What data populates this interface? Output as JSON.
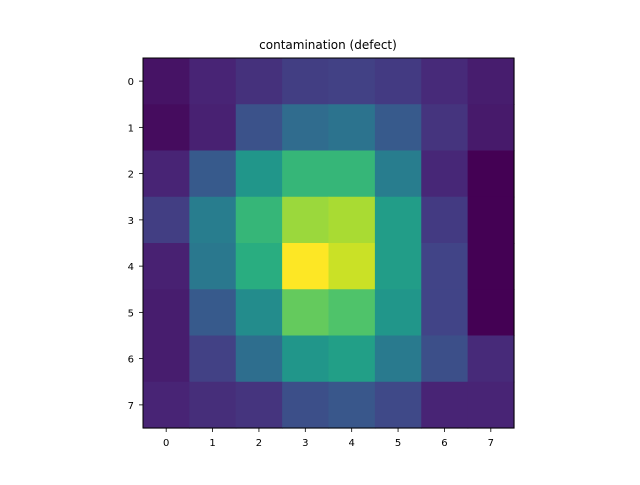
{
  "chart_data": {
    "type": "heatmap",
    "title": "contamination (defect)",
    "xlabel": "",
    "ylabel": "",
    "x_ticks": [
      "0",
      "1",
      "2",
      "3",
      "4",
      "5",
      "6",
      "7"
    ],
    "y_ticks": [
      "0",
      "1",
      "2",
      "3",
      "4",
      "5",
      "6",
      "7"
    ],
    "colormap": "viridis",
    "vmin": 0.0,
    "vmax": 1.0,
    "values": [
      [
        0.05,
        0.1,
        0.14,
        0.18,
        0.19,
        0.17,
        0.12,
        0.08
      ],
      [
        0.03,
        0.09,
        0.25,
        0.35,
        0.38,
        0.28,
        0.15,
        0.07
      ],
      [
        0.1,
        0.28,
        0.52,
        0.66,
        0.66,
        0.42,
        0.11,
        0.0
      ],
      [
        0.18,
        0.42,
        0.66,
        0.85,
        0.87,
        0.55,
        0.17,
        0.0
      ],
      [
        0.09,
        0.4,
        0.62,
        1.0,
        0.92,
        0.55,
        0.2,
        0.0
      ],
      [
        0.08,
        0.28,
        0.48,
        0.76,
        0.72,
        0.52,
        0.2,
        0.0
      ],
      [
        0.08,
        0.19,
        0.36,
        0.52,
        0.56,
        0.41,
        0.24,
        0.12
      ],
      [
        0.1,
        0.13,
        0.15,
        0.24,
        0.27,
        0.22,
        0.1,
        0.1
      ]
    ]
  }
}
